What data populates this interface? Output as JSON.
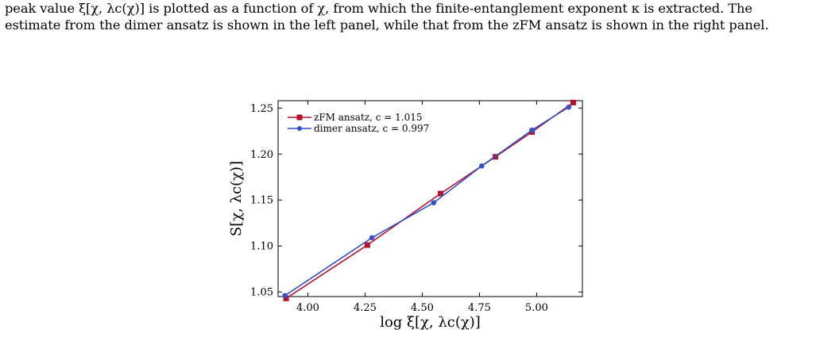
{
  "caption": {
    "line1": "peak value ξ[χ, λc(χ)] is plotted as a function of χ, from which the finite-entanglement exponent κ is extracted. The",
    "line2": "estimate from the dimer ansatz is shown in the left panel, while that from the zFM ansatz is shown in the right panel."
  },
  "chart_data": {
    "type": "line",
    "xlabel": "log ξ[χ, λc(χ)]",
    "ylabel": "S[χ, λc(χ)]",
    "xlim": [
      3.87,
      5.2
    ],
    "ylim": [
      1.045,
      1.258
    ],
    "xticks": [
      "4.00",
      "4.25",
      "4.50",
      "4.75",
      "5.00"
    ],
    "xtick_values": [
      4.0,
      4.25,
      4.5,
      4.75,
      5.0
    ],
    "yticks": [
      "1.05",
      "1.10",
      "1.15",
      "1.20",
      "1.25"
    ],
    "ytick_values": [
      1.05,
      1.1,
      1.15,
      1.2,
      1.25
    ],
    "grid": false,
    "legend_position": "top-left",
    "series": [
      {
        "name": "zFM ansatz, c = 1.015",
        "color": "#b5112e",
        "marker": "square",
        "x": [
          3.905,
          4.26,
          4.58,
          4.82,
          4.98,
          5.16
        ],
        "y": [
          1.043,
          1.101,
          1.157,
          1.197,
          1.224,
          1.256
        ]
      },
      {
        "name": "dimer ansatz, c = 0.997",
        "color": "#3451c7",
        "marker": "circle",
        "x": [
          3.9,
          4.28,
          4.55,
          4.76,
          4.98,
          5.14
        ],
        "y": [
          1.046,
          1.109,
          1.147,
          1.187,
          1.226,
          1.251
        ]
      }
    ]
  }
}
